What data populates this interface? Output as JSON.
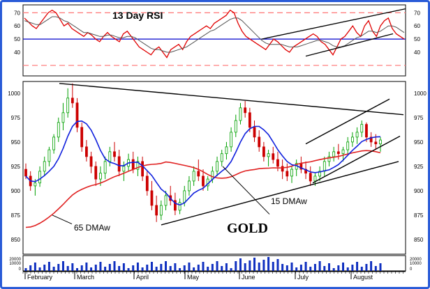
{
  "chart_data": {
    "type": "line",
    "title": "GOLD",
    "annotation_gold": "GOLD",
    "months": [
      "February",
      "March",
      "April",
      "May",
      "June",
      "July",
      "August"
    ],
    "rsi_panel": {
      "title": "13 Day RSI",
      "yticks": [
        40,
        50,
        60,
        70
      ],
      "ylim": [
        22,
        76
      ],
      "reference_lines": [
        {
          "value": 70,
          "style": "dashed-red"
        },
        {
          "value": 50,
          "style": "solid-blue"
        },
        {
          "value": 30,
          "style": "dashed-red"
        }
      ],
      "series": [
        {
          "name": "",
          "color": "#e00000",
          "values": [
            66,
            63,
            60,
            58,
            62,
            66,
            70,
            72,
            70,
            65,
            60,
            62,
            58,
            56,
            54,
            52,
            55,
            53,
            50,
            48,
            52,
            55,
            52,
            50,
            48,
            54,
            56,
            52,
            48,
            44,
            42,
            40,
            38,
            42,
            44,
            40,
            36,
            42,
            44,
            46,
            42,
            48,
            52,
            54,
            56,
            58,
            60,
            58,
            62,
            64,
            66,
            68,
            72,
            70,
            62,
            56,
            52,
            50,
            48,
            46,
            44,
            42,
            46,
            50,
            48,
            45,
            42,
            40,
            44,
            46,
            48,
            50,
            52,
            54,
            52,
            48,
            46,
            42,
            38,
            44,
            50,
            52,
            56,
            60,
            55,
            52,
            60,
            64,
            56,
            52,
            60,
            64,
            66,
            58,
            54,
            52,
            50
          ]
        },
        {
          "name": "",
          "color": "#555555",
          "values": [
            64,
            63,
            62,
            61,
            61,
            63,
            65,
            67,
            67,
            66,
            64,
            63,
            61,
            59,
            57,
            55,
            55,
            54,
            53,
            52,
            52,
            53,
            53,
            52,
            51,
            51,
            52,
            52,
            51,
            49,
            47,
            45,
            43,
            42,
            42,
            41,
            40,
            40,
            41,
            42,
            43,
            44,
            46,
            48,
            50,
            52,
            54,
            56,
            57,
            59,
            61,
            63,
            65,
            66,
            66,
            64,
            61,
            58,
            55,
            52,
            49,
            47,
            46,
            46,
            46,
            46,
            45,
            44,
            44,
            44,
            45,
            46,
            47,
            48,
            49,
            49,
            48,
            47,
            45,
            44,
            44,
            45,
            47,
            49,
            51,
            52,
            54,
            56,
            56,
            55,
            56,
            58,
            60,
            60,
            59,
            57,
            55
          ]
        }
      ],
      "channel_label": ""
    },
    "price_panel": {
      "yticks": [
        850,
        875,
        900,
        925,
        950,
        975,
        1000
      ],
      "ylim": [
        835,
        1012
      ],
      "candles": [
        [
          922,
          928,
          912,
          915
        ],
        [
          915,
          920,
          900,
          905
        ],
        [
          905,
          912,
          895,
          908
        ],
        [
          908,
          925,
          904,
          920
        ],
        [
          920,
          935,
          915,
          930
        ],
        [
          930,
          945,
          925,
          942
        ],
        [
          942,
          958,
          938,
          955
        ],
        [
          955,
          975,
          950,
          970
        ],
        [
          970,
          990,
          962,
          980
        ],
        [
          980,
          1005,
          975,
          995
        ],
        [
          995,
          1010,
          985,
          990
        ],
        [
          990,
          995,
          960,
          965
        ],
        [
          965,
          970,
          940,
          945
        ],
        [
          945,
          952,
          930,
          935
        ],
        [
          935,
          940,
          918,
          925
        ],
        [
          925,
          930,
          905,
          912
        ],
        [
          912,
          925,
          905,
          918
        ],
        [
          918,
          935,
          912,
          930
        ],
        [
          930,
          945,
          925,
          940
        ],
        [
          940,
          950,
          930,
          935
        ],
        [
          935,
          942,
          915,
          920
        ],
        [
          920,
          930,
          910,
          925
        ],
        [
          925,
          938,
          920,
          932
        ],
        [
          932,
          940,
          918,
          922
        ],
        [
          922,
          935,
          915,
          930
        ],
        [
          930,
          935,
          910,
          915
        ],
        [
          915,
          920,
          895,
          900
        ],
        [
          900,
          910,
          880,
          885
        ],
        [
          885,
          895,
          868,
          875
        ],
        [
          875,
          890,
          870,
          885
        ],
        [
          885,
          900,
          880,
          895
        ],
        [
          895,
          905,
          885,
          890
        ],
        [
          890,
          898,
          875,
          880
        ],
        [
          880,
          892,
          876,
          888
        ],
        [
          888,
          905,
          884,
          900
        ],
        [
          900,
          915,
          895,
          910
        ],
        [
          910,
          925,
          905,
          920
        ],
        [
          920,
          932,
          910,
          915
        ],
        [
          915,
          922,
          900,
          905
        ],
        [
          905,
          915,
          900,
          912
        ],
        [
          912,
          925,
          908,
          920
        ],
        [
          920,
          935,
          915,
          930
        ],
        [
          930,
          942,
          925,
          938
        ],
        [
          938,
          950,
          932,
          945
        ],
        [
          945,
          965,
          940,
          960
        ],
        [
          960,
          978,
          955,
          972
        ],
        [
          972,
          990,
          968,
          985
        ],
        [
          985,
          992,
          975,
          980
        ],
        [
          980,
          985,
          960,
          965
        ],
        [
          965,
          972,
          950,
          955
        ],
        [
          955,
          962,
          940,
          945
        ],
        [
          945,
          950,
          930,
          935
        ],
        [
          935,
          942,
          925,
          938
        ],
        [
          938,
          945,
          928,
          932
        ],
        [
          932,
          940,
          920,
          925
        ],
        [
          925,
          932,
          912,
          920
        ],
        [
          920,
          928,
          910,
          915
        ],
        [
          915,
          925,
          908,
          922
        ],
        [
          922,
          932,
          915,
          928
        ],
        [
          928,
          935,
          918,
          922
        ],
        [
          922,
          930,
          912,
          918
        ],
        [
          918,
          925,
          905,
          910
        ],
        [
          910,
          918,
          905,
          915
        ],
        [
          915,
          925,
          910,
          920
        ],
        [
          920,
          935,
          915,
          930
        ],
        [
          930,
          940,
          925,
          935
        ],
        [
          935,
          945,
          930,
          940
        ],
        [
          940,
          948,
          932,
          938
        ],
        [
          938,
          945,
          930,
          942
        ],
        [
          942,
          955,
          938,
          950
        ],
        [
          950,
          960,
          945,
          955
        ],
        [
          955,
          965,
          948,
          960
        ],
        [
          960,
          972,
          955,
          968
        ],
        [
          968,
          970,
          950,
          955
        ],
        [
          955,
          960,
          945,
          950
        ],
        [
          950,
          958,
          942,
          948
        ],
        [
          948,
          955,
          940,
          952
        ]
      ],
      "dma15": [],
      "dma65": [],
      "dma15_label": "15 DMAw",
      "dma65_label": "65 DMAw"
    },
    "volume_panel": {
      "yticks": [
        20000,
        10000,
        0
      ],
      "ytick_labels": [
        "20000",
        "10000",
        "0"
      ]
    }
  }
}
